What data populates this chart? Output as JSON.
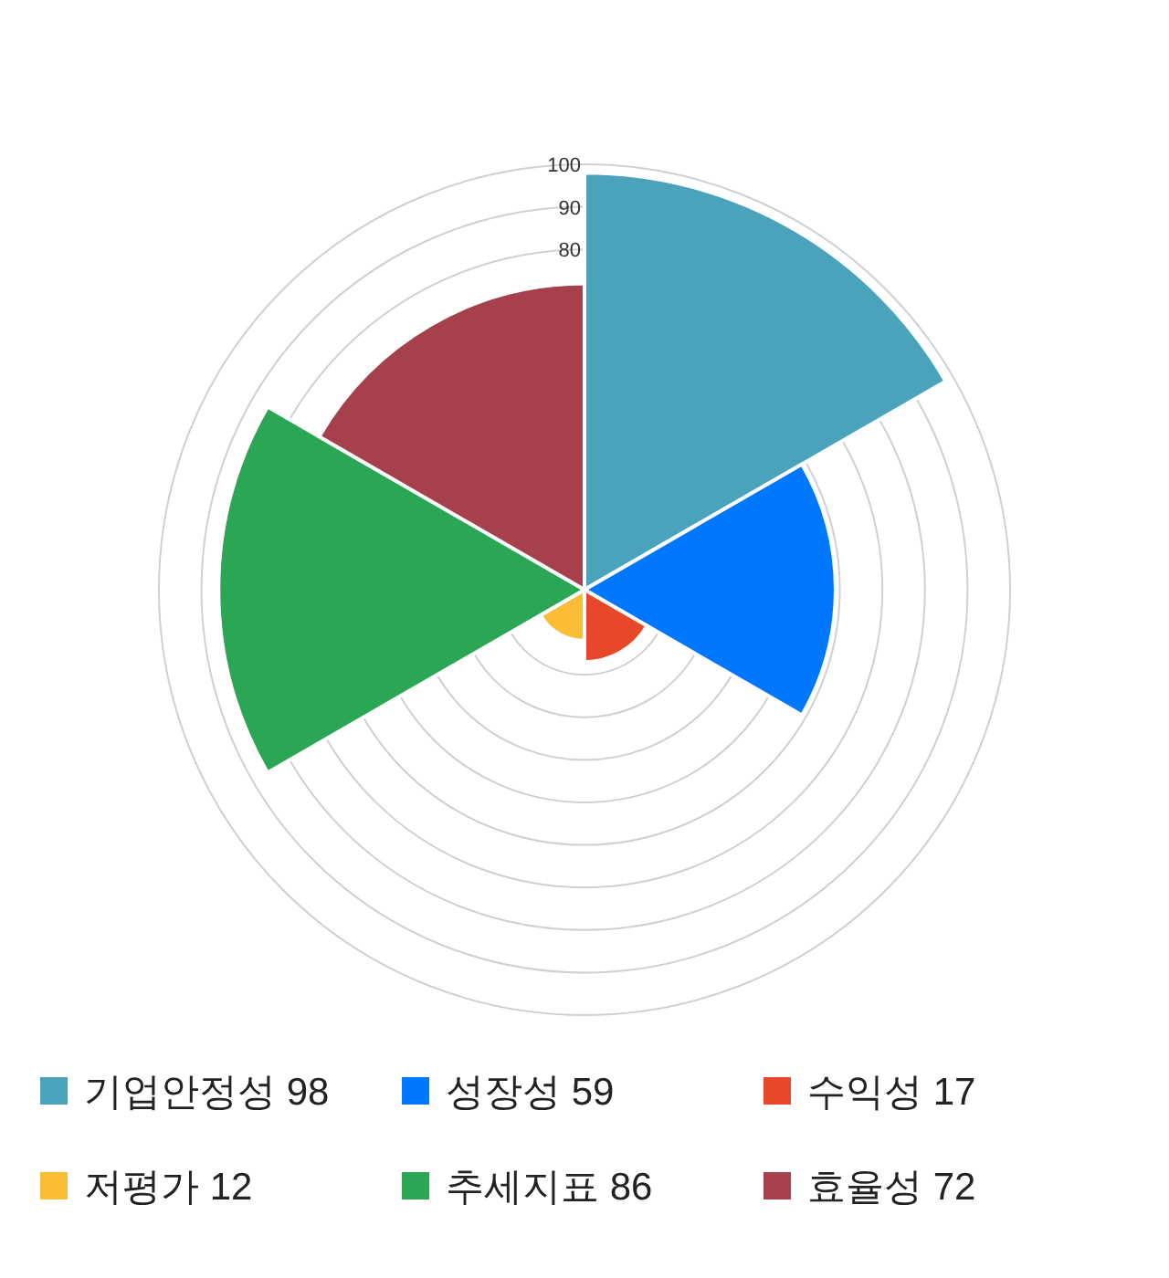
{
  "chart_data": {
    "type": "other",
    "categories": [
      "기업안정성",
      "성장성",
      "수익성",
      "저평가",
      "추세지표",
      "효율성"
    ],
    "values": [
      98,
      59,
      17,
      12,
      86,
      72
    ],
    "value_labels": [
      "98",
      "59",
      "17",
      "12",
      "86",
      "72"
    ],
    "colors": [
      "#4aa3ba",
      "#0077ff",
      "#e8482a",
      "#fbbc36",
      "#2ba655",
      "#a7404d"
    ],
    "annotations": [
      "100",
      "90",
      "80"
    ]
  }
}
